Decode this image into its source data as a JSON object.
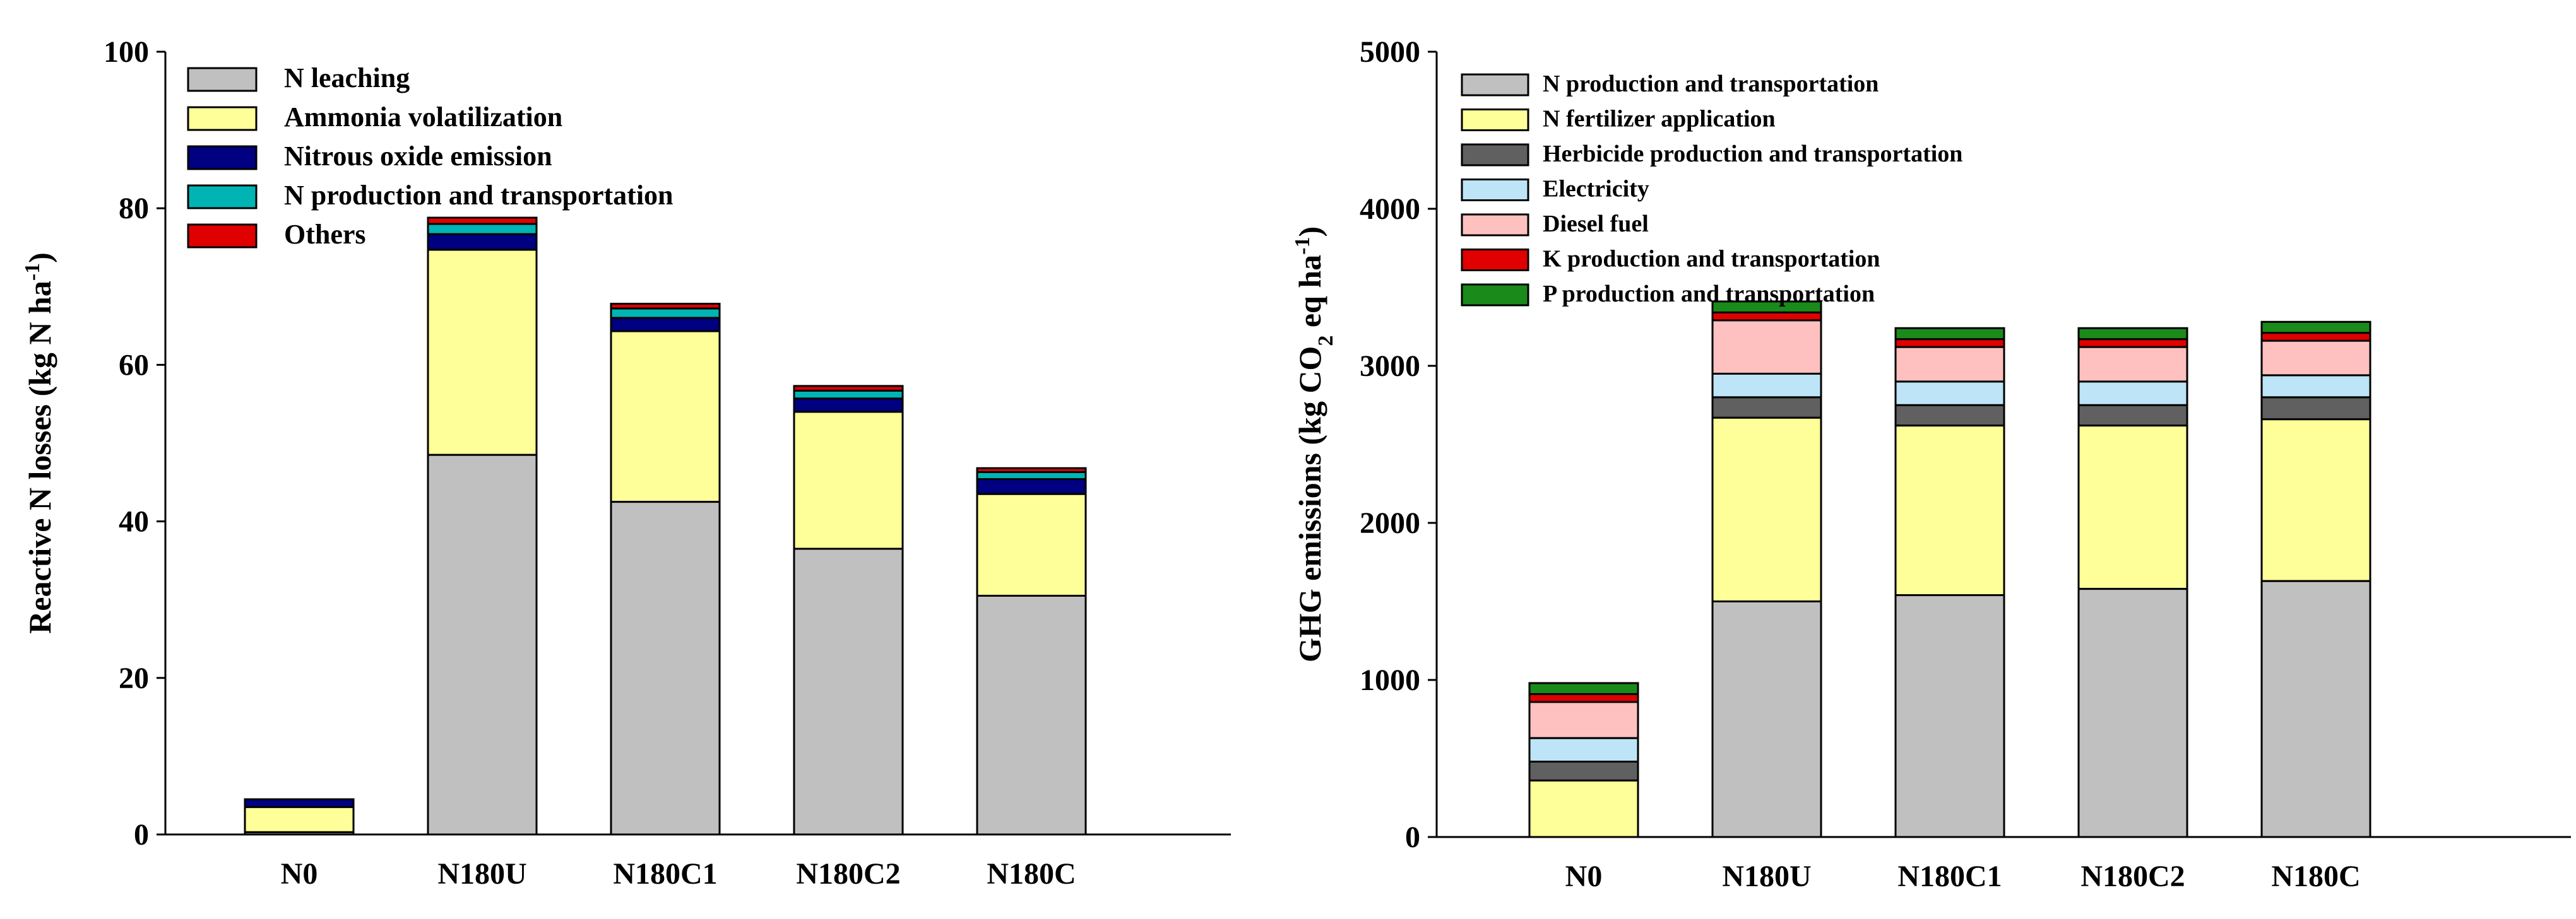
{
  "chart_data": [
    {
      "type": "bar",
      "stacked": true,
      "title": "",
      "xlabel": "",
      "ylabel": "Reactive N losses (kg N ha⁻¹)",
      "ylabel_main": "Reactive N losses (kg N ha",
      "ylabel_sup": "-1",
      "ylabel_end": ")",
      "ylim": [
        0,
        100
      ],
      "yticks": [
        0,
        20,
        40,
        60,
        80,
        100
      ],
      "categories": [
        "N0",
        "N180U",
        "N180C1",
        "N180C2",
        "N180C"
      ],
      "series": [
        {
          "name": "N leaching",
          "color": "#c0c0c0",
          "values": [
            0.3,
            48.5,
            42.5,
            36.5,
            30.5
          ]
        },
        {
          "name": "Ammonia volatilization",
          "color": "#ffff99",
          "values": [
            3.2,
            26.2,
            21.8,
            17.5,
            13.0
          ]
        },
        {
          "name": "Nitrous oxide emission",
          "color": "#000080",
          "values": [
            1.0,
            2.0,
            1.7,
            1.7,
            1.9
          ]
        },
        {
          "name": "N production and transportation",
          "color": "#00b4b4",
          "values": [
            0,
            1.3,
            1.2,
            1.0,
            0.9
          ]
        },
        {
          "name": "Others",
          "color": "#e00000",
          "values": [
            0,
            0.8,
            0.6,
            0.6,
            0.5
          ]
        }
      ],
      "legend_position": "top-left"
    },
    {
      "type": "bar",
      "stacked": true,
      "title": "",
      "xlabel": "",
      "ylabel": "GHG emissions (kg CO₂ eq ha⁻¹)",
      "ylabel_main": "GHG emissions (kg CO",
      "ylabel_sub": "2",
      "ylabel_mid": " eq ha",
      "ylabel_sup": "-1",
      "ylabel_end": ")",
      "ylim": [
        0,
        5000
      ],
      "yticks": [
        0,
        1000,
        2000,
        3000,
        4000,
        5000
      ],
      "categories": [
        "N0",
        "N180U",
        "N180C1",
        "N180C2",
        "N180C"
      ],
      "series": [
        {
          "name": "N production and transportation",
          "color": "#c0c0c0",
          "values": [
            0,
            1500,
            1540,
            1580,
            1630
          ]
        },
        {
          "name": "N fertilizer application",
          "color": "#ffff99",
          "values": [
            360,
            1170,
            1080,
            1040,
            1030
          ]
        },
        {
          "name": "Herbicide production and transportation",
          "color": "#606060",
          "values": [
            120,
            130,
            130,
            130,
            140
          ]
        },
        {
          "name": "Electricity",
          "color": "#bde4f7",
          "values": [
            150,
            150,
            150,
            150,
            140
          ]
        },
        {
          "name": "Diesel fuel",
          "color": "#ffc0c0",
          "values": [
            230,
            340,
            220,
            220,
            220
          ]
        },
        {
          "name": "K production and transportation",
          "color": "#e00000",
          "values": [
            50,
            50,
            50,
            50,
            50
          ]
        },
        {
          "name": "P production and transportation",
          "color": "#1a8a1a",
          "values": [
            70,
            70,
            70,
            70,
            70
          ]
        }
      ],
      "legend_position": "top-left"
    }
  ]
}
